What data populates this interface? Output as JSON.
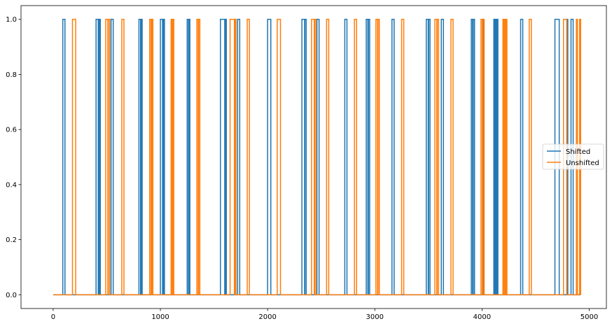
{
  "chart_data": {
    "type": "line",
    "step": true,
    "title": "",
    "xlabel": "",
    "ylabel": "",
    "xlim": [
      -300,
      5160
    ],
    "ylim": [
      -0.05,
      1.05
    ],
    "x_ticks": [
      0,
      1000,
      2000,
      3000,
      4000,
      5000
    ],
    "x_tick_labels": [
      "0",
      "1000",
      "2000",
      "3000",
      "4000",
      "5000"
    ],
    "y_ticks": [
      0.0,
      0.2,
      0.4,
      0.6,
      0.8,
      1.0
    ],
    "y_tick_labels": [
      "0.0",
      "0.2",
      "0.4",
      "0.6",
      "0.8",
      "1.0"
    ],
    "grid": false,
    "legend_position": "center-right",
    "x_start": 0,
    "x_end": 4920,
    "series": [
      {
        "name": "Shifted",
        "color": "#1f77b4",
        "high_intervals": [
          [
            90,
            110
          ],
          [
            400,
            420
          ],
          [
            430,
            440
          ],
          [
            540,
            560
          ],
          [
            800,
            815
          ],
          [
            822,
            830
          ],
          [
            1000,
            1020
          ],
          [
            1028,
            1038
          ],
          [
            1250,
            1262
          ],
          [
            1265,
            1275
          ],
          [
            1560,
            1600
          ],
          [
            1605,
            1615
          ],
          [
            1720,
            1740
          ],
          [
            2000,
            2030
          ],
          [
            2320,
            2345
          ],
          [
            2348,
            2360
          ],
          [
            2460,
            2480
          ],
          [
            2720,
            2740
          ],
          [
            2920,
            2935
          ],
          [
            2940,
            2952
          ],
          [
            3160,
            3180
          ],
          [
            3480,
            3498
          ],
          [
            3502,
            3515
          ],
          [
            3620,
            3640
          ],
          [
            3900,
            3912
          ],
          [
            3918,
            3930
          ],
          [
            4005,
            4012
          ],
          [
            4110,
            4120
          ],
          [
            4125,
            4135
          ],
          [
            4140,
            4148
          ],
          [
            4360,
            4380
          ],
          [
            4680,
            4720
          ],
          [
            4790,
            4800
          ],
          [
            4830,
            4850
          ]
        ]
      },
      {
        "name": "Unshifted",
        "color": "#ff7f0e",
        "high_intervals": [
          [
            180,
            210
          ],
          [
            490,
            510
          ],
          [
            515,
            528
          ],
          [
            640,
            660
          ],
          [
            900,
            912
          ],
          [
            920,
            930
          ],
          [
            1100,
            1110
          ],
          [
            1115,
            1125
          ],
          [
            1340,
            1352
          ],
          [
            1357,
            1368
          ],
          [
            1650,
            1690
          ],
          [
            1695,
            1705
          ],
          [
            1810,
            1830
          ],
          [
            2090,
            2120
          ],
          [
            2410,
            2435
          ],
          [
            2438,
            2450
          ],
          [
            2550,
            2570
          ],
          [
            2810,
            2830
          ],
          [
            3010,
            3025
          ],
          [
            3030,
            3042
          ],
          [
            3250,
            3270
          ],
          [
            3560,
            3578
          ],
          [
            3582,
            3595
          ],
          [
            3710,
            3730
          ],
          [
            3990,
            4002
          ],
          [
            4008,
            4020
          ],
          [
            4195,
            4205
          ],
          [
            4210,
            4218
          ],
          [
            4224,
            4232
          ],
          [
            4440,
            4460
          ],
          [
            4760,
            4790
          ],
          [
            4880,
            4890
          ],
          [
            4910,
            4920
          ]
        ]
      }
    ]
  }
}
